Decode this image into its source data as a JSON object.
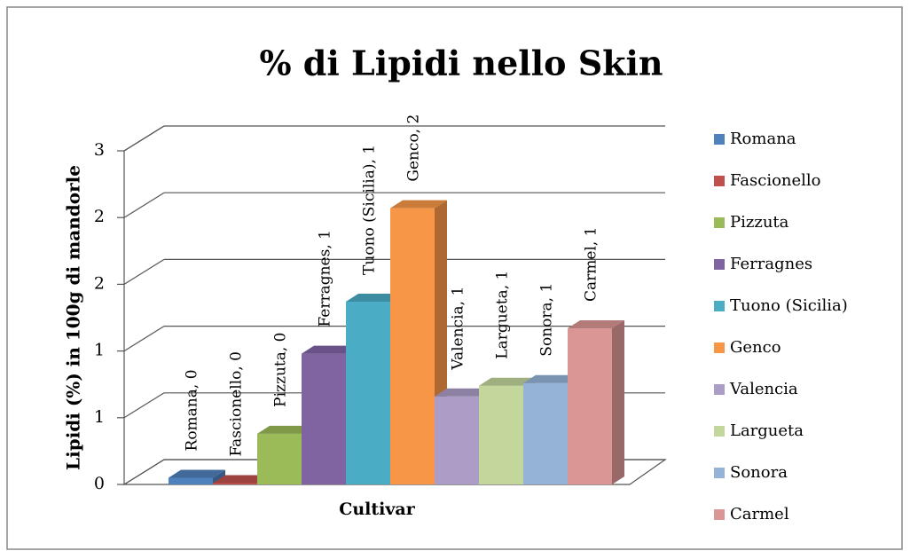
{
  "chart_data": {
    "type": "bar3d",
    "title": "% di Lipidi nello Skin",
    "y_label": "Lipidi (%) in 100g di mandorle",
    "x_label": "Cultivar",
    "categories": [
      "Romana",
      "Fascionello",
      "Pizzuta",
      "Ferragnes",
      "Tuono (Sicilia)",
      "Genco",
      "Valencia",
      "Largueta",
      "Sonora",
      "Carmel"
    ],
    "values": [
      0.05,
      0.01,
      0.38,
      0.98,
      1.37,
      2.07,
      0.66,
      0.74,
      0.76,
      1.17
    ],
    "value_labels": [
      "Romana, 0",
      "Fascionello, 0",
      "Pizzuta, 0",
      "Ferragnes, 1",
      "Tuono (Sicilia), 1",
      "Genco, 2",
      "Valencia, 1",
      "Largueta, 1",
      "Sonora, 1",
      "Carmel, 1"
    ],
    "colors": [
      "#4f81bd",
      "#c0504d",
      "#9bbb59",
      "#8064a2",
      "#4bacc6",
      "#f79646",
      "#ab9dc6",
      "#c3d69b",
      "#95b3d7",
      "#d99694"
    ],
    "ylim": [
      0,
      2.5
    ],
    "yticks": [
      0,
      {
        "value": 0.5,
        "label": "1"
      },
      1,
      {
        "value": 1.5,
        "label": "2"
      },
      2,
      {
        "value": 2.5,
        "label": "3"
      }
    ],
    "grid": true,
    "legend": "right"
  }
}
